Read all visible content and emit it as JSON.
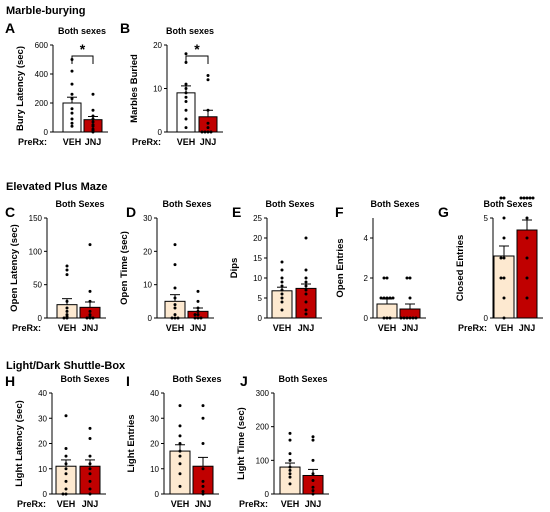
{
  "sections": [
    "Marble-burying",
    "Elevated Plus Maze",
    "Light/Dark Shuttle-Box"
  ],
  "colors": {
    "veh_fill": "#fde9d0",
    "veh_fill_marble": "#ffffff",
    "jnj_fill": "#c00000",
    "point": "#000000"
  },
  "chart_data": [
    {
      "id": "A",
      "section": 0,
      "type": "bar",
      "title": "Both sexes",
      "ylabel": "Bury Latency (sec)",
      "xprefix": "PreRx:",
      "categories": [
        "VEH",
        "JNJ"
      ],
      "values": [
        200,
        85
      ],
      "sem": [
        40,
        22
      ],
      "ylim": [
        0,
        600
      ],
      "yticks": [
        0,
        200,
        400,
        600
      ],
      "significance": "*",
      "points": [
        [
          500,
          420,
          330,
          260,
          230,
          160,
          130,
          90,
          60,
          40
        ],
        [
          260,
          150,
          110,
          90,
          70,
          50,
          40,
          20,
          10,
          0
        ]
      ]
    },
    {
      "id": "B",
      "section": 0,
      "type": "bar",
      "title": "Both sexes",
      "ylabel": "Marbles Buried",
      "xprefix": "PreRx:",
      "categories": [
        "VEH",
        "JNJ"
      ],
      "values": [
        9,
        3.5
      ],
      "sem": [
        1.6,
        1.5
      ],
      "ylim": [
        0,
        20
      ],
      "yticks": [
        0,
        10,
        20
      ],
      "significance": "*",
      "points": [
        [
          18,
          16,
          11,
          10,
          9,
          8,
          7,
          5,
          3,
          1
        ],
        [
          13,
          12,
          5,
          2,
          1,
          0,
          0,
          0,
          0
        ]
      ]
    },
    {
      "id": "C",
      "section": 1,
      "type": "bar",
      "title": "Both Sexes",
      "ylabel": "Open Latency (sec)",
      "xprefix": "PreRx:",
      "categories": [
        "VEH",
        "JNJ"
      ],
      "values": [
        20,
        16
      ],
      "sem": [
        9,
        8
      ],
      "ylim": [
        0,
        150
      ],
      "yticks": [
        0,
        50,
        100,
        150
      ],
      "points": [
        [
          78,
          72,
          65,
          25,
          15,
          10,
          5,
          2,
          0,
          0
        ],
        [
          110,
          40,
          25,
          10,
          5,
          2,
          0,
          0,
          0
        ]
      ]
    },
    {
      "id": "D",
      "section": 1,
      "type": "bar",
      "title": "Both Sexes",
      "ylabel": "Open Time (sec)",
      "xprefix": "",
      "categories": [
        "VEH",
        "JNJ"
      ],
      "values": [
        5,
        2
      ],
      "sem": [
        2,
        1
      ],
      "ylim": [
        0,
        30
      ],
      "yticks": [
        0,
        10,
        20,
        30
      ],
      "points": [
        [
          22,
          16,
          9,
          6,
          4,
          3,
          1,
          0,
          0,
          0
        ],
        [
          8,
          5,
          3,
          2,
          1,
          1,
          0,
          0,
          0
        ]
      ]
    },
    {
      "id": "E",
      "section": 1,
      "type": "bar",
      "title": "Both Sexes",
      "ylabel": "Dips",
      "xprefix": "",
      "categories": [
        "VEH",
        "JNJ"
      ],
      "values": [
        6.8,
        7.4
      ],
      "sem": [
        0.9,
        1.1
      ],
      "ylim": [
        0,
        25
      ],
      "yticks": [
        0,
        5,
        10,
        15,
        20,
        25
      ],
      "points": [
        [
          14,
          12,
          10,
          9,
          8,
          7,
          6,
          5,
          4,
          2
        ],
        [
          20,
          12,
          10,
          9,
          8,
          7,
          6,
          4,
          2,
          1
        ]
      ]
    },
    {
      "id": "F",
      "section": 1,
      "type": "bar",
      "title": "Both Sexes",
      "ylabel": "Open Entries",
      "xprefix": "",
      "categories": [
        "VEH",
        "JNJ"
      ],
      "values": [
        0.7,
        0.45
      ],
      "sem": [
        0.25,
        0.25
      ],
      "ylim": [
        0,
        5
      ],
      "yticks": [
        0,
        2,
        4
      ],
      "points": [
        [
          2,
          2,
          1,
          1,
          1,
          1,
          1,
          0,
          0,
          0
        ],
        [
          2,
          2,
          1,
          0,
          0,
          0,
          0,
          0,
          0
        ]
      ]
    },
    {
      "id": "G",
      "section": 1,
      "type": "bar",
      "title": "Both Sexes",
      "ylabel": "Closed Entries",
      "xprefix": "PreRx:",
      "categories": [
        "VEH",
        "JNJ"
      ],
      "values": [
        3.1,
        4.4
      ],
      "sem": [
        0.5,
        0.5
      ],
      "ylim": [
        0,
        5
      ],
      "yticks": [
        0,
        5
      ],
      "points": [
        [
          6,
          6,
          5,
          4,
          3,
          3,
          2,
          2,
          1,
          0
        ],
        [
          6,
          6,
          6,
          6,
          6,
          5,
          4,
          3,
          2,
          1
        ]
      ]
    },
    {
      "id": "H",
      "section": 2,
      "type": "bar",
      "title": "Both Sexes",
      "ylabel": "Light Latency (sec)",
      "xprefix": "PreRx:",
      "categories": [
        "VEH",
        "JNJ"
      ],
      "values": [
        11,
        11
      ],
      "sem": [
        2.5,
        2.5
      ],
      "ylim": [
        0,
        40
      ],
      "yticks": [
        0,
        10,
        20,
        30,
        40
      ],
      "points": [
        [
          31,
          18,
          15,
          12,
          10,
          8,
          5,
          2,
          0,
          0
        ],
        [
          26,
          22,
          15,
          12,
          10,
          8,
          5,
          2,
          0
        ]
      ]
    },
    {
      "id": "I",
      "section": 2,
      "type": "bar",
      "title": "Both Sexes",
      "ylabel": "Light Entries",
      "xprefix": "",
      "categories": [
        "VEH",
        "JNJ"
      ],
      "values": [
        17,
        11
      ],
      "sem": [
        2.5,
        3.5
      ],
      "ylim": [
        0,
        40
      ],
      "yticks": [
        0,
        10,
        20,
        30,
        40
      ],
      "points": [
        [
          35,
          27,
          23,
          20,
          17,
          15,
          12,
          8,
          3
        ],
        [
          35,
          30,
          20,
          10,
          5,
          3,
          1,
          0
        ]
      ]
    },
    {
      "id": "J",
      "section": 2,
      "type": "bar",
      "title": "Both Sexes",
      "ylabel": "Light Time (sec)",
      "xprefix": "PreRx:",
      "categories": [
        "VEH",
        "JNJ"
      ],
      "values": [
        80,
        55
      ],
      "sem": [
        12,
        18
      ],
      "ylim": [
        0,
        300
      ],
      "yticks": [
        0,
        100,
        200,
        300
      ],
      "points": [
        [
          180,
          160,
          120,
          100,
          80,
          70,
          60,
          50,
          30
        ],
        [
          170,
          160,
          100,
          60,
          40,
          20,
          10,
          0
        ]
      ]
    }
  ]
}
